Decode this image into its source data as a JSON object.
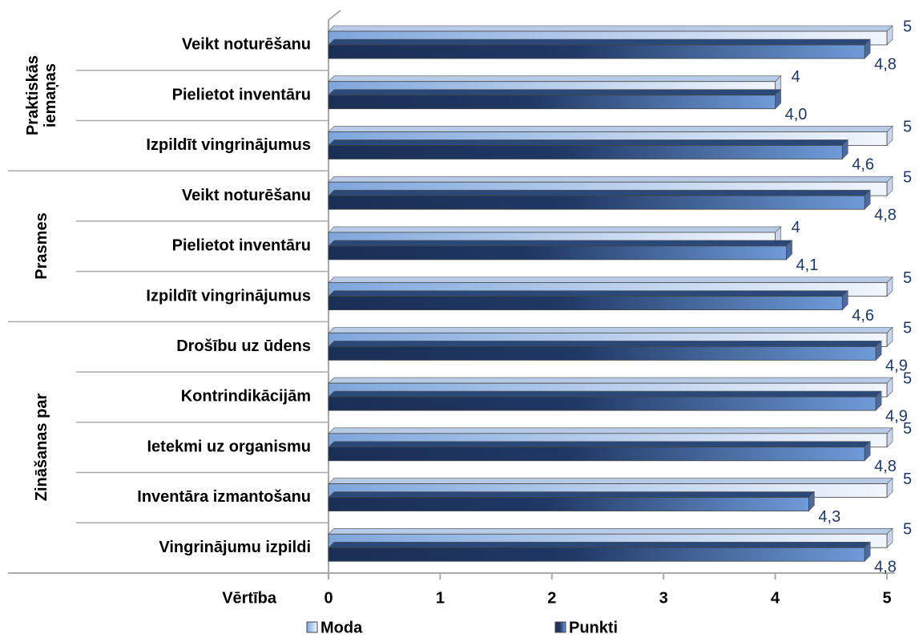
{
  "chart_data": {
    "type": "bar",
    "orientation": "horizontal",
    "groups": [
      {
        "name": "Praktiskās iemaņas",
        "categories": [
          "Veikt noturēšanu",
          "Pielietot inventāru",
          "Izpildīt vingrinājumus"
        ]
      },
      {
        "name": "Prasmes",
        "categories": [
          "Veikt noturēšanu",
          "Pielietot inventāru",
          "Izpildīt vingrinājumus"
        ]
      },
      {
        "name": "Zināšanas par",
        "categories": [
          "Drošību uz ūdens",
          "Kontrindikācijām",
          "Ietekmi uz organismu",
          "Inventāra izmantošanu",
          "Vingrinājumu izpildi"
        ]
      }
    ],
    "series": [
      {
        "name": "Moda",
        "color": "#8fb3e3",
        "values": [
          5,
          4,
          5,
          5,
          4,
          5,
          5,
          5,
          5,
          5,
          5
        ]
      },
      {
        "name": "Punkti",
        "color": "#1f3864",
        "values": [
          4.8,
          4.0,
          4.6,
          4.8,
          4.1,
          4.6,
          4.9,
          4.9,
          4.8,
          4.3,
          4.8
        ],
        "value_labels": [
          "4,8",
          "4,0",
          "4,6",
          "4,8",
          "4,1",
          "4,6",
          "4,9",
          "4,9",
          "4,8",
          "4,3",
          "4,8"
        ]
      }
    ],
    "xlabel": "Vērtība",
    "xlim": [
      0,
      5
    ],
    "xticks": [
      0,
      1,
      2,
      3,
      4,
      5
    ],
    "legend": "bottom"
  }
}
